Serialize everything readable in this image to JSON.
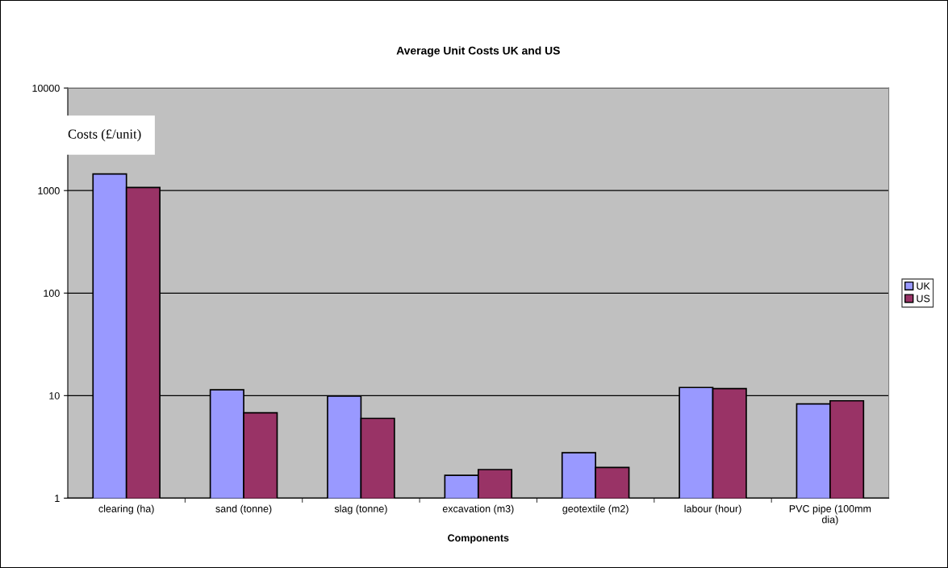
{
  "chart_data": {
    "type": "bar",
    "title": "Average Unit Costs UK and US",
    "xlabel": "Components",
    "ylabel": "Costs (£/unit)",
    "categories": [
      "clearing (ha)",
      "sand (tonne)",
      "slag (tonne)",
      "excavation (m3)",
      "geotextile (m2)",
      "labour (hour)",
      "PVC pipe (100mm\ndia)"
    ],
    "series": [
      {
        "name": "UK",
        "color": "#9999ff",
        "values": [
          1450,
          11.4,
          9.9,
          1.67,
          2.77,
          12.0,
          8.3
        ]
      },
      {
        "name": "US",
        "color": "#993366",
        "values": [
          1070,
          6.8,
          6.0,
          1.9,
          1.99,
          11.7,
          8.9
        ]
      }
    ],
    "log": "y",
    "ylim": [
      1,
      10000
    ],
    "yticks": [
      1,
      10,
      100,
      1000,
      10000
    ],
    "grid": "y",
    "legend": "right"
  }
}
